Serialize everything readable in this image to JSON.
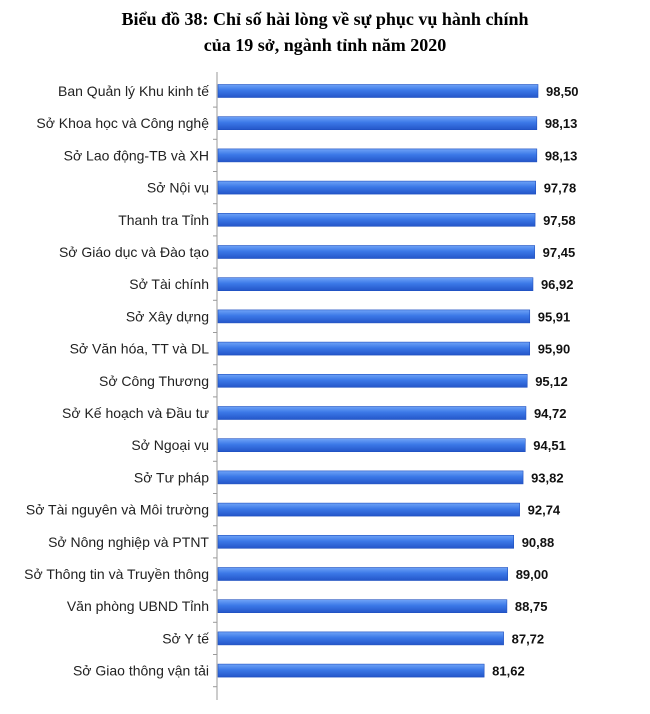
{
  "title": {
    "prefix": "Biểu đồ 38:",
    "line1_rest": " Chỉ số hài lòng về sự phục vụ hành chính",
    "line2": "của 19 sở, ngành tỉnh năm 2020"
  },
  "chart_data": {
    "type": "bar",
    "orientation": "horizontal",
    "title": "Biểu đồ 38: Chỉ số hài lòng về sự phục vụ hành chính của 19 sở, ngành tỉnh năm 2020",
    "categories": [
      "Ban Quản lý Khu kinh tế",
      "Sở Khoa học và Công nghệ",
      "Sở Lao động-TB  và XH",
      "Sở Nội vụ",
      "Thanh  tra Tỉnh",
      "Sở Giáo dục và Đào tạo",
      "Sở Tài chính",
      "Sở Xây dựng",
      "Sở Văn hóa, TT và DL",
      "Sở Công Thương",
      "Sở Kế hoạch và Đầu tư",
      "Sở Ngoại vụ",
      "Sở Tư pháp",
      "Sở Tài nguyên và Môi trường",
      "Sở Nông nghiệp và PTNT",
      "Sở Thông  tin và Truyền  thông",
      "Văn phòng  UBND Tỉnh",
      "Sở Y tế",
      "Sở Giao thông vận tải"
    ],
    "values": [
      98.5,
      98.13,
      98.13,
      97.78,
      97.58,
      97.45,
      96.92,
      95.91,
      95.9,
      95.12,
      94.72,
      94.51,
      93.82,
      92.74,
      90.88,
      89.0,
      88.75,
      87.72,
      81.62
    ],
    "labels": [
      "98,50",
      "98,13",
      "98,13",
      "97,78",
      "97,58",
      "97,45",
      "96,92",
      "95,91",
      "95,90",
      "95,12",
      "94,72",
      "94,51",
      "93,82",
      "92,74",
      "90,88",
      "89,00",
      "88,75",
      "87,72",
      "81,62"
    ],
    "bar_color": "#3b78e7",
    "bar_edge_color": "#1f4fbf",
    "grid": false,
    "legend": "none"
  }
}
